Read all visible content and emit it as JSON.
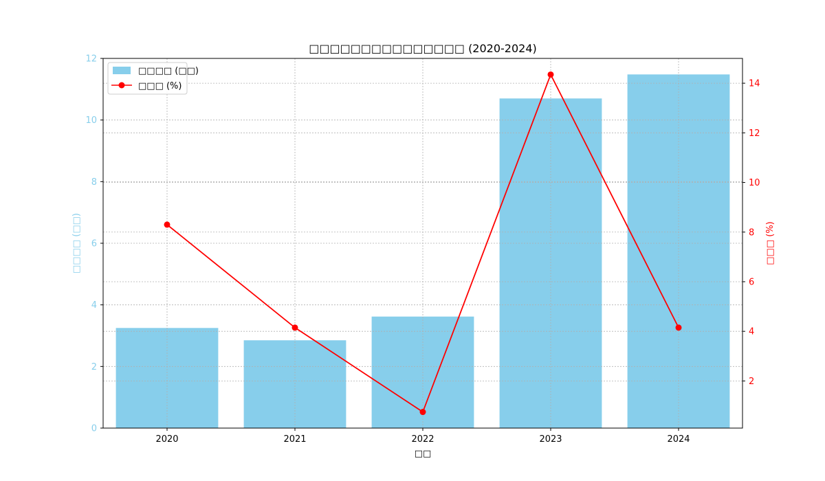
{
  "chart_data": {
    "type": "bar+line",
    "title": "□□□□□□□□□□□□□□□ (2020-2024)",
    "xlabel": "□□",
    "categories": [
      "2020",
      "2021",
      "2022",
      "2023",
      "2024"
    ],
    "left_axis": {
      "label": "□□□□ (□□)",
      "ylim": [
        0,
        12
      ],
      "ticks": [
        0,
        2,
        4,
        6,
        8,
        10,
        12
      ],
      "color": "#87CEEB"
    },
    "right_axis": {
      "label": "□□□ (%)",
      "ylim": [
        0.1,
        15.0
      ],
      "ticks": [
        2,
        4,
        6,
        8,
        10,
        12,
        14
      ],
      "color": "#FF0000"
    },
    "series": [
      {
        "name": "□□□□ (□□)",
        "type": "bar",
        "axis": "left",
        "color": "#87CEEB",
        "values": [
          3.25,
          2.85,
          3.62,
          10.7,
          11.48
        ]
      },
      {
        "name": "□□□ (%)",
        "type": "line",
        "axis": "right",
        "color": "#FF0000",
        "values": [
          8.3,
          4.15,
          0.75,
          14.35,
          4.15
        ]
      }
    ],
    "grid": true,
    "legend": "top-left"
  }
}
